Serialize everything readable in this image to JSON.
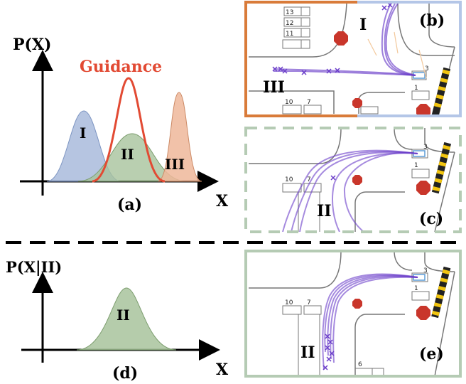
{
  "colors": {
    "mode_I": "#a9bbdc",
    "mode_II": "#a8c39c",
    "mode_III": "#efb79a",
    "guidance": "#e24a33",
    "traj": "#6a3dc9",
    "frame_b_left": "#d97b3a",
    "frame_b_right": "#b4c6e7",
    "frame_c": "#b5cbb4",
    "frame_e": "#b5cbb4",
    "stop": "#c9362b"
  },
  "panel_a": {
    "y_label": "P(X)",
    "x_label": "X",
    "guidance_label": "Guidance",
    "modes": [
      "I",
      "II",
      "III"
    ],
    "caption": "(a)"
  },
  "panel_d": {
    "y_label": "P(X|II)",
    "x_label": "X",
    "mode": "II",
    "caption": "(d)"
  },
  "panel_b": {
    "caption": "(b)",
    "labels": [
      "I",
      "III"
    ],
    "slots": [
      "13",
      "12",
      "11",
      "10",
      "7",
      "3",
      "1",
      "4"
    ]
  },
  "panel_c": {
    "caption": "(c)",
    "label": "II",
    "slots": [
      "10",
      "7",
      "3",
      "1",
      "4"
    ]
  },
  "panel_e": {
    "caption": "(e)",
    "label": "II",
    "slots": [
      "10",
      "7",
      "3",
      "1",
      "4",
      "6"
    ]
  }
}
